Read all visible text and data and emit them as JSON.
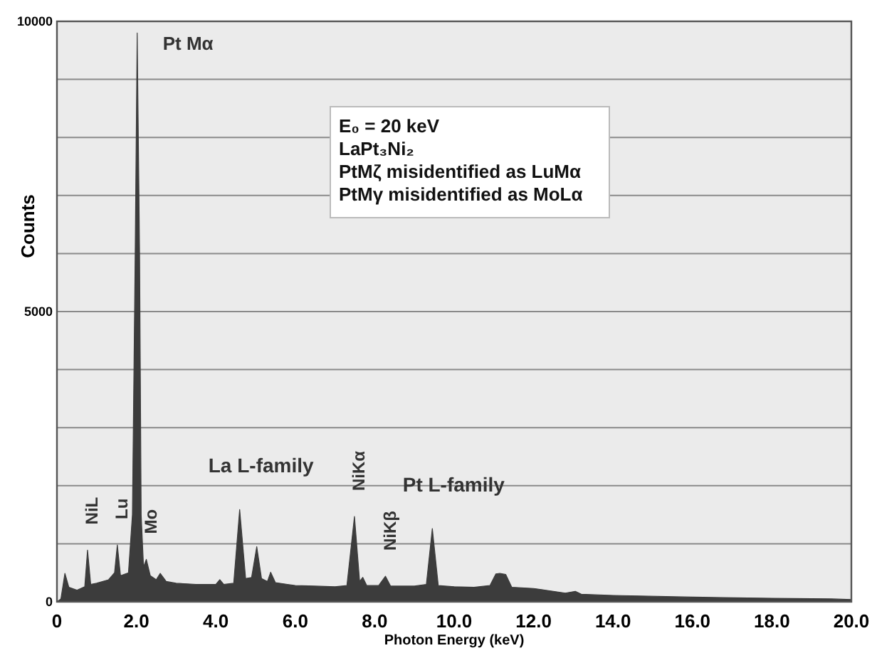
{
  "chart_data": {
    "type": "area",
    "xlabel": "Photon Energy (keV)",
    "ylabel": "Counts",
    "xlim": [
      0,
      20
    ],
    "ylim": [
      0,
      10000
    ],
    "xticks": [
      0,
      {
        "value": 2,
        "label": "2.0"
      },
      {
        "value": 4,
        "label": "4.0"
      },
      {
        "value": 6,
        "label": "6.0"
      },
      {
        "value": 8,
        "label": "8.0"
      },
      {
        "value": 10,
        "label": "10.0"
      },
      {
        "value": 12,
        "label": "12.0"
      },
      {
        "value": 14,
        "label": "14.0"
      },
      {
        "value": 16,
        "label": "16.0"
      },
      {
        "value": 18,
        "label": "18.0"
      },
      {
        "value": 20,
        "label": "20.0"
      }
    ],
    "yticks": [
      0,
      {
        "value": 1000,
        "label": null
      },
      {
        "value": 2000,
        "label": null
      },
      {
        "value": 3000,
        "label": null
      },
      {
        "value": 4000,
        "label": null
      },
      5000,
      {
        "value": 6000,
        "label": null
      },
      {
        "value": 7000,
        "label": null
      },
      {
        "value": 8000,
        "label": null
      },
      {
        "value": 9000,
        "label": null
      },
      10000
    ],
    "grid": "y",
    "series": [
      {
        "color": "#3c3c3c",
        "x": [
          0,
          0.1,
          0.2,
          0.3,
          0.5,
          0.7,
          0.77,
          0.85,
          1.0,
          1.3,
          1.45,
          1.52,
          1.6,
          1.8,
          1.9,
          1.97,
          2.02,
          2.08,
          2.12,
          2.18,
          2.25,
          2.35,
          2.5,
          2.6,
          2.75,
          3.0,
          3.5,
          4.0,
          4.1,
          4.2,
          4.45,
          4.6,
          4.75,
          4.9,
          5.03,
          5.15,
          5.3,
          5.38,
          5.5,
          5.8,
          6.0,
          6.5,
          7.0,
          7.3,
          7.49,
          7.62,
          7.7,
          7.8,
          8.1,
          8.27,
          8.4,
          9.0,
          9.3,
          9.45,
          9.6,
          10.0,
          10.5,
          10.9,
          11.05,
          11.15,
          11.3,
          11.45,
          12.0,
          12.8,
          13.05,
          13.2,
          14.0,
          16.0,
          18.0,
          19.5,
          20.0
        ],
        "values": [
          0,
          50,
          490,
          250,
          200,
          260,
          890,
          300,
          320,
          380,
          500,
          980,
          450,
          500,
          1500,
          6000,
          9800,
          6000,
          1500,
          600,
          730,
          450,
          380,
          490,
          350,
          320,
          300,
          300,
          380,
          300,
          320,
          1590,
          400,
          420,
          950,
          400,
          350,
          510,
          330,
          300,
          280,
          270,
          260,
          280,
          1470,
          350,
          420,
          280,
          280,
          440,
          270,
          270,
          300,
          1260,
          280,
          260,
          250,
          280,
          480,
          490,
          470,
          250,
          230,
          150,
          180,
          130,
          110,
          80,
          60,
          50,
          40
        ]
      }
    ],
    "annotations": [
      {
        "text": "Pt Mα",
        "x": 2.02,
        "y": 9800
      },
      {
        "text": "NiL",
        "x": 0.77,
        "y": 890
      },
      {
        "text": "Lu",
        "x": 1.52,
        "y": 980
      },
      {
        "text": "Mo",
        "x": 2.25,
        "y": 730
      },
      {
        "text": "La L-family",
        "x": 4.6,
        "y": 1590
      },
      {
        "text": "NiKα",
        "x": 7.49,
        "y": 1470
      },
      {
        "text": "NiKβ",
        "x": 8.27,
        "y": 440
      },
      {
        "text": "Pt L-family",
        "x": 9.45,
        "y": 1260
      },
      "E₀ = 20 keV",
      "LaPt₃Ni₂",
      "PtMζ misidentified as LuMα",
      "PtMγ misidentified as MoLα"
    ]
  }
}
